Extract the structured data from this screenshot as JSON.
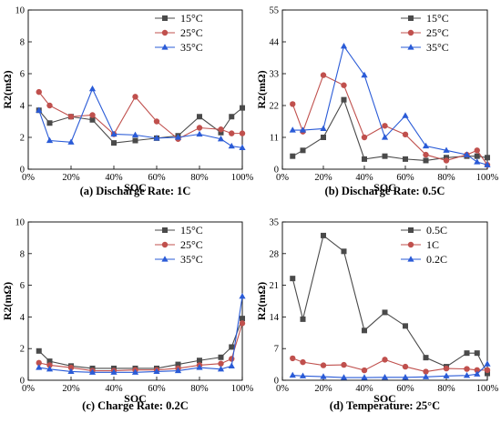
{
  "figure": {
    "colors": {
      "black": "#4a4a4a",
      "red": "#c0504d",
      "blue": "#2a5bd7"
    },
    "x_ticks": [
      "0%",
      "20%",
      "40%",
      "60%",
      "80%",
      "100%"
    ]
  },
  "chart_data": [
    {
      "type": "line",
      "caption": "(a) Discharge Rate: 1C",
      "xlabel": "SOC",
      "ylabel": "R2(mΩ)",
      "ylim": [
        0,
        10
      ],
      "yticks": [
        0,
        2,
        4,
        6,
        8,
        10
      ],
      "xlim": [
        0,
        100
      ],
      "legend_position": "top-right",
      "x": [
        5,
        10,
        20,
        30,
        40,
        50,
        60,
        70,
        80,
        90,
        95,
        100
      ],
      "series": [
        {
          "name": "15°C",
          "marker": "square",
          "color": "#4a4a4a",
          "values": [
            3.7,
            2.9,
            3.3,
            3.1,
            1.65,
            1.8,
            1.95,
            2.1,
            3.3,
            2.3,
            3.3,
            3.85
          ]
        },
        {
          "name": "25°C",
          "marker": "circle",
          "color": "#c0504d",
          "values": [
            4.85,
            4.0,
            3.3,
            3.4,
            2.2,
            4.55,
            3.0,
            1.9,
            2.6,
            2.5,
            2.25,
            2.25
          ]
        },
        {
          "name": "35°C",
          "marker": "triangle",
          "color": "#2a5bd7",
          "values": [
            3.7,
            1.8,
            1.7,
            5.05,
            2.2,
            2.15,
            1.95,
            2.0,
            2.2,
            1.9,
            1.45,
            1.35
          ]
        }
      ]
    },
    {
      "type": "line",
      "caption": "(b) Discharge Rate: 0.5C",
      "xlabel": "SOC",
      "ylabel": "R2(mΩ)",
      "ylim": [
        0,
        55
      ],
      "yticks": [
        0,
        11,
        22,
        33,
        44,
        55
      ],
      "xlim": [
        0,
        100
      ],
      "legend_position": "top-right",
      "x": [
        5,
        10,
        20,
        30,
        40,
        50,
        60,
        70,
        80,
        90,
        95,
        100
      ],
      "series": [
        {
          "name": "15°C",
          "marker": "square",
          "color": "#4a4a4a",
          "values": [
            4.5,
            6.5,
            11,
            24,
            3.5,
            4.5,
            3.5,
            3.0,
            4.0,
            4.5,
            4.5,
            4.0
          ]
        },
        {
          "name": "25°C",
          "marker": "circle",
          "color": "#c0504d",
          "values": [
            22.5,
            13.0,
            32.5,
            29,
            11,
            15,
            12,
            5.0,
            3.0,
            5.0,
            6.5,
            1.5
          ]
        },
        {
          "name": "35°C",
          "marker": "triangle",
          "color": "#2a5bd7",
          "values": [
            13.5,
            13.5,
            14,
            42.5,
            32.5,
            11,
            18.5,
            8.0,
            6.5,
            5.0,
            2.5,
            1.5
          ]
        }
      ]
    },
    {
      "type": "line",
      "caption": "(c) Charge Rate: 0.2C",
      "xlabel": "SOC",
      "ylabel": "R2(mΩ)",
      "ylim": [
        0,
        10
      ],
      "yticks": [
        0,
        2,
        4,
        6,
        8,
        10
      ],
      "xlim": [
        0,
        100
      ],
      "legend_position": "top-right",
      "x": [
        5,
        10,
        20,
        30,
        40,
        50,
        60,
        70,
        80,
        90,
        95,
        100
      ],
      "series": [
        {
          "name": "15°C",
          "marker": "square",
          "color": "#4a4a4a",
          "values": [
            1.85,
            1.2,
            0.9,
            0.75,
            0.75,
            0.75,
            0.75,
            1.0,
            1.25,
            1.45,
            2.1,
            3.9
          ]
        },
        {
          "name": "25°C",
          "marker": "circle",
          "color": "#c0504d",
          "values": [
            1.1,
            0.95,
            0.8,
            0.6,
            0.6,
            0.65,
            0.65,
            0.75,
            0.95,
            1.05,
            1.35,
            3.6
          ]
        },
        {
          "name": "35°C",
          "marker": "triangle",
          "color": "#2a5bd7",
          "values": [
            0.8,
            0.7,
            0.55,
            0.5,
            0.5,
            0.5,
            0.55,
            0.6,
            0.8,
            0.7,
            0.9,
            5.3
          ]
        }
      ]
    },
    {
      "type": "line",
      "caption": "(d) Temperature: 25°C",
      "xlabel": "SOC",
      "ylabel": "R2(mΩ)",
      "ylim": [
        0,
        35
      ],
      "yticks": [
        0,
        7,
        14,
        21,
        28,
        35
      ],
      "xlim": [
        0,
        100
      ],
      "legend_position": "top-right",
      "x": [
        5,
        10,
        20,
        30,
        40,
        50,
        60,
        70,
        80,
        90,
        95,
        100
      ],
      "series": [
        {
          "name": "0.5C",
          "marker": "square",
          "color": "#4a4a4a",
          "values": [
            22.5,
            13.5,
            32,
            28.5,
            11,
            15,
            12,
            5.0,
            3.0,
            6.0,
            6.0,
            1.5
          ]
        },
        {
          "name": "1C",
          "marker": "circle",
          "color": "#c0504d",
          "values": [
            4.85,
            4.0,
            3.3,
            3.4,
            2.2,
            4.55,
            3.0,
            1.9,
            2.6,
            2.5,
            2.25,
            2.25
          ]
        },
        {
          "name": "0.2C",
          "marker": "triangle",
          "color": "#2a5bd7",
          "values": [
            1.1,
            0.95,
            0.8,
            0.6,
            0.6,
            0.65,
            0.65,
            0.75,
            0.95,
            1.05,
            1.35,
            3.6
          ]
        }
      ]
    }
  ]
}
